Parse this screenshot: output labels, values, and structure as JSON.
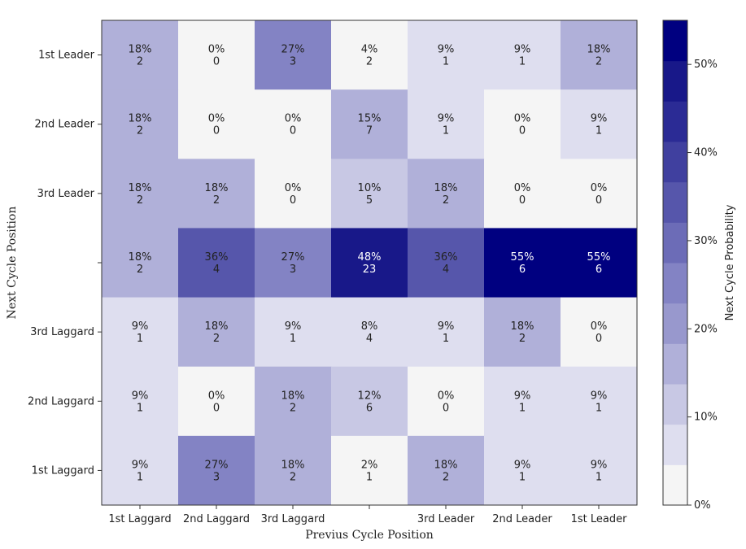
{
  "chart_data": {
    "type": "heatmap",
    "xlabel": "Previus Cycle Position",
    "ylabel": "Next Cycle Position",
    "x_categories": [
      "1st Laggard",
      "2nd Laggard",
      "3rd Laggard",
      "",
      "3rd Leader",
      "2nd Leader",
      "1st Leader"
    ],
    "y_categories": [
      "1st Leader",
      "2nd Leader",
      "3rd Leader",
      "",
      "3rd Laggard",
      "2nd Laggard",
      "1st Laggard"
    ],
    "percent": [
      [
        18,
        0,
        27,
        4,
        9,
        9,
        18
      ],
      [
        18,
        0,
        0,
        15,
        9,
        0,
        9
      ],
      [
        18,
        18,
        0,
        10,
        18,
        0,
        0
      ],
      [
        18,
        36,
        27,
        48,
        36,
        55,
        55
      ],
      [
        9,
        18,
        9,
        8,
        9,
        18,
        0
      ],
      [
        9,
        0,
        18,
        12,
        0,
        9,
        9
      ],
      [
        9,
        27,
        18,
        2,
        18,
        9,
        9
      ]
    ],
    "counts": [
      [
        2,
        0,
        3,
        2,
        1,
        1,
        2
      ],
      [
        2,
        0,
        0,
        7,
        1,
        0,
        1
      ],
      [
        2,
        2,
        0,
        5,
        2,
        0,
        0
      ],
      [
        2,
        4,
        3,
        23,
        4,
        6,
        6
      ],
      [
        1,
        2,
        1,
        4,
        1,
        2,
        0
      ],
      [
        1,
        0,
        2,
        6,
        0,
        1,
        1
      ],
      [
        1,
        3,
        2,
        1,
        2,
        1,
        1
      ]
    ],
    "colorbar": {
      "label": "Next Cycle Probability",
      "range": [
        0,
        55
      ],
      "ticks": [
        "0%",
        "10%",
        "20%",
        "30%",
        "40%",
        "50%"
      ],
      "tick_values": [
        0,
        10,
        20,
        30,
        40,
        50
      ],
      "palette": [
        "#f5f5f5",
        "#dedeef",
        "#c8c8e4",
        "#b0b0d9",
        "#9898cd",
        "#8383c4",
        "#6c6cb7",
        "#5656ab",
        "#40409f",
        "#2b2b95",
        "#181889",
        "#000080"
      ]
    }
  }
}
